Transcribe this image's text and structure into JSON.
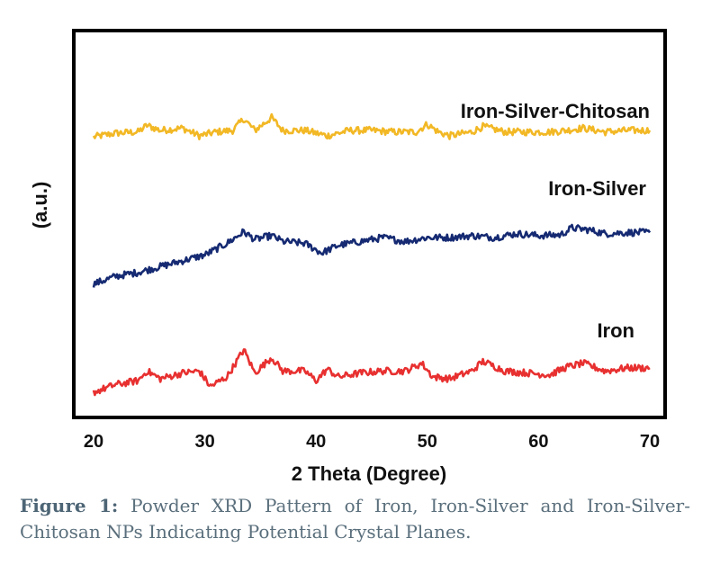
{
  "chart_data": {
    "type": "line",
    "title": "",
    "xlabel": "2 Theta (Degree)",
    "ylabel": "(a.u.)",
    "xlim": [
      20,
      70
    ],
    "xticks": [
      20,
      30,
      40,
      50,
      60,
      70
    ],
    "grid": false,
    "legend": "none",
    "series": [
      {
        "name": "Iron-Silver-Chitosan",
        "color": "#f2b825",
        "baseline": 0.735,
        "x": [
          20,
          22,
          24,
          24.8,
          26,
          28,
          29.5,
          31,
          32.5,
          33.5,
          34.5,
          36,
          37,
          39,
          41,
          43,
          45,
          47,
          49,
          50,
          51,
          52,
          54,
          55,
          57,
          59,
          61,
          62.5,
          64,
          66,
          68,
          70
        ],
        "y": [
          0.725,
          0.735,
          0.738,
          0.755,
          0.742,
          0.748,
          0.728,
          0.738,
          0.742,
          0.772,
          0.742,
          0.775,
          0.742,
          0.742,
          0.728,
          0.742,
          0.742,
          0.738,
          0.738,
          0.758,
          0.738,
          0.728,
          0.738,
          0.752,
          0.738,
          0.738,
          0.738,
          0.742,
          0.748,
          0.738,
          0.742,
          0.742
        ]
      },
      {
        "name": "Iron-Silver",
        "color": "#152a72",
        "baseline": 0.45,
        "x": [
          20,
          22,
          24,
          26,
          28,
          30,
          32,
          33.5,
          34.5,
          36,
          37,
          39,
          40.5,
          42,
          44,
          46,
          48,
          50,
          52,
          54,
          56,
          58,
          60,
          62,
          63,
          64.5,
          66,
          68,
          70
        ],
        "y": [
          0.345,
          0.365,
          0.375,
          0.39,
          0.405,
          0.42,
          0.45,
          0.48,
          0.46,
          0.47,
          0.455,
          0.45,
          0.425,
          0.445,
          0.455,
          0.465,
          0.455,
          0.465,
          0.465,
          0.47,
          0.465,
          0.475,
          0.47,
          0.472,
          0.49,
          0.485,
          0.475,
          0.478,
          0.478
        ]
      },
      {
        "name": "Iron",
        "color": "#e83030",
        "baseline": 0.12,
        "x": [
          20,
          22,
          24,
          24.8,
          26,
          28,
          29.5,
          30.5,
          32,
          33.5,
          34.5,
          36,
          37,
          39,
          40,
          41,
          42,
          44,
          46,
          48,
          49.5,
          50.5,
          52,
          54,
          55,
          57,
          59,
          61,
          62.5,
          64,
          66,
          68,
          70
        ],
        "y": [
          0.065,
          0.085,
          0.095,
          0.12,
          0.1,
          0.115,
          0.12,
          0.08,
          0.105,
          0.175,
          0.115,
          0.155,
          0.12,
          0.12,
          0.095,
          0.125,
          0.105,
          0.115,
          0.12,
          0.12,
          0.14,
          0.105,
          0.1,
          0.12,
          0.145,
          0.12,
          0.115,
          0.11,
          0.13,
          0.14,
          0.12,
          0.128,
          0.128
        ]
      }
    ]
  },
  "caption": {
    "label": "Figure 1:",
    "text": " Powder XRD Pattern of Iron, Iron-Silver and Iron-Silver-Chitosan NPs Indicating Potential Crystal Planes."
  }
}
